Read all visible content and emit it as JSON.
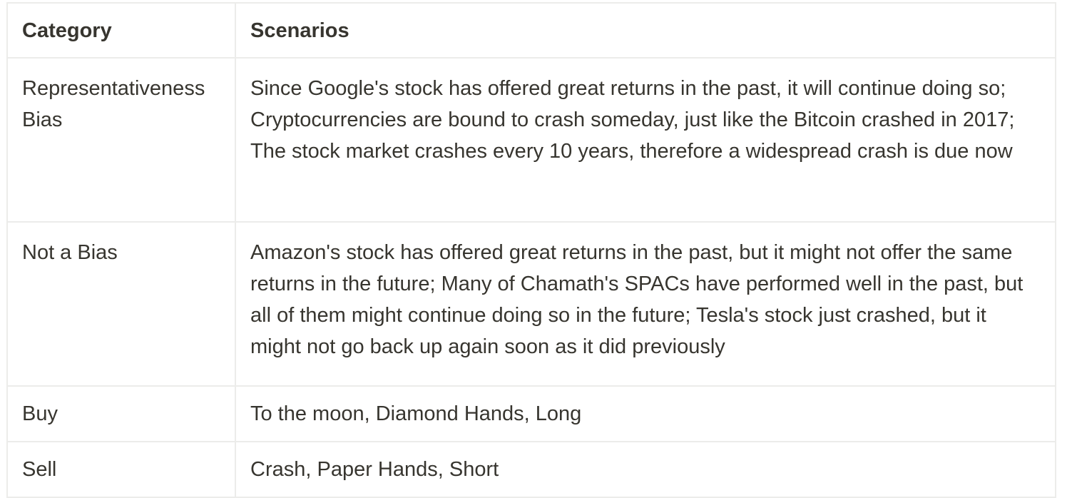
{
  "table": {
    "headers": {
      "category": "Category",
      "scenarios": "Scenarios"
    },
    "rows": [
      {
        "category": "Representativeness Bias",
        "scenarios": "Since Google's stock has offered great returns in the past, it will continue doing so; Cryptocurrencies are bound to crash someday, just like the Bitcoin crashed in 2017; The stock market crashes every 10 years, therefore a widespread crash is due now"
      },
      {
        "category": "Not a Bias",
        "scenarios": "Amazon's stock has offered great returns in the past, but it might not offer the same returns in the future; Many of Chamath's SPACs have performed well in the past, but all of them might continue doing so in the future; Tesla's stock just crashed, but it might not go back up again soon as it did previously"
      },
      {
        "category": "Buy",
        "scenarios": "To the moon, Diamond Hands, Long"
      },
      {
        "category": "Sell",
        "scenarios": "Crash, Paper Hands, Short"
      }
    ]
  },
  "colors": {
    "text": "#37352f",
    "border": "#ececea",
    "background": "#ffffff"
  }
}
